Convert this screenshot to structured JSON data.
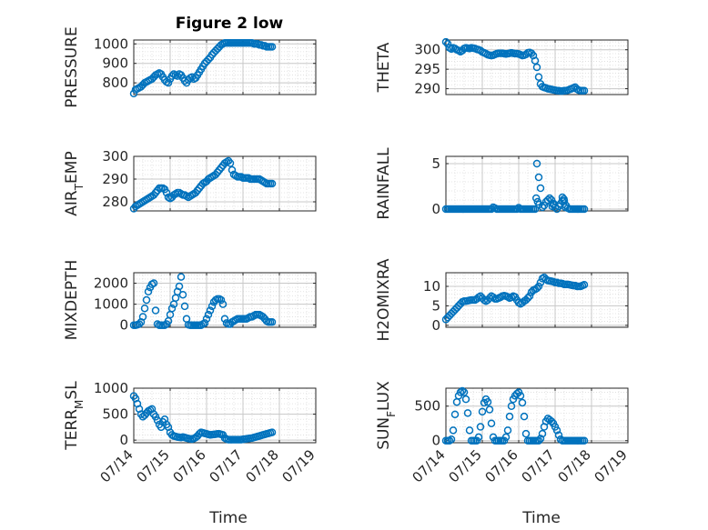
{
  "figure": {
    "title": "Figure 2 low",
    "marker_color": "#0072BD",
    "axis_color": "#262626",
    "grid_color": "#dcdcdc",
    "tick_labels_x": [
      "07/14",
      "07/15",
      "07/16",
      "07/17",
      "07/18",
      "07/19"
    ],
    "xlabel": "Time"
  },
  "chart_data": [
    {
      "type": "scatter",
      "title": "Figure 2 low",
      "xlabel": "",
      "ylabel": "PRESSURE",
      "xlim": [
        0,
        5
      ],
      "ylim": [
        740,
        1020
      ],
      "yticks": [
        800,
        900,
        1000
      ],
      "grid": true,
      "x": [
        0.0,
        0.05,
        0.1,
        0.15,
        0.2,
        0.25,
        0.3,
        0.35,
        0.4,
        0.45,
        0.5,
        0.55,
        0.6,
        0.65,
        0.7,
        0.75,
        0.8,
        0.85,
        0.9,
        0.95,
        1.0,
        1.05,
        1.1,
        1.15,
        1.2,
        1.25,
        1.3,
        1.35,
        1.4,
        1.45,
        1.5,
        1.55,
        1.6,
        1.65,
        1.7,
        1.75,
        1.8,
        1.85,
        1.9,
        1.95,
        2.0,
        2.05,
        2.1,
        2.15,
        2.2,
        2.25,
        2.3,
        2.35,
        2.4,
        2.45,
        2.5,
        2.55,
        2.6,
        2.65,
        2.7,
        2.75,
        2.8,
        2.85,
        2.9,
        2.95,
        3.0,
        3.05,
        3.1,
        3.15,
        3.2,
        3.25,
        3.3,
        3.35,
        3.4,
        3.45,
        3.5,
        3.55,
        3.6,
        3.65,
        3.7,
        3.75,
        3.8
      ],
      "y": [
        745,
        765,
        770,
        775,
        780,
        790,
        800,
        805,
        810,
        815,
        820,
        830,
        840,
        845,
        850,
        845,
        830,
        815,
        805,
        800,
        820,
        835,
        845,
        840,
        835,
        845,
        840,
        825,
        810,
        800,
        815,
        825,
        830,
        820,
        825,
        840,
        855,
        870,
        885,
        900,
        910,
        920,
        930,
        945,
        955,
        965,
        975,
        985,
        995,
        1000,
        1005,
        1005,
        1005,
        1005,
        1005,
        1005,
        1005,
        1005,
        1005,
        1005,
        1005,
        1005,
        1005,
        1005,
        1005,
        1005,
        1000,
        1000,
        1000,
        995,
        995,
        990,
        990,
        985,
        985,
        985,
        985
      ]
    },
    {
      "type": "scatter",
      "xlabel": "",
      "ylabel": "THETA",
      "xlim": [
        0,
        5
      ],
      "ylim": [
        288.5,
        302.5
      ],
      "yticks": [
        290,
        295,
        300
      ],
      "grid": true,
      "x": [
        0.0,
        0.05,
        0.1,
        0.15,
        0.2,
        0.25,
        0.3,
        0.35,
        0.4,
        0.45,
        0.5,
        0.55,
        0.6,
        0.65,
        0.7,
        0.75,
        0.8,
        0.85,
        0.9,
        0.95,
        1.0,
        1.05,
        1.1,
        1.15,
        1.2,
        1.25,
        1.3,
        1.35,
        1.4,
        1.45,
        1.5,
        1.55,
        1.6,
        1.65,
        1.7,
        1.75,
        1.8,
        1.85,
        1.9,
        1.95,
        2.0,
        2.05,
        2.1,
        2.15,
        2.2,
        2.25,
        2.3,
        2.35,
        2.4,
        2.45,
        2.5,
        2.55,
        2.6,
        2.65,
        2.7,
        2.75,
        2.8,
        2.85,
        2.9,
        2.95,
        3.0,
        3.05,
        3.1,
        3.15,
        3.2,
        3.25,
        3.3,
        3.35,
        3.4,
        3.45,
        3.5,
        3.55,
        3.6,
        3.65,
        3.7,
        3.75,
        3.8
      ],
      "y": [
        302,
        301.5,
        300.5,
        300.2,
        300.5,
        300.3,
        300,
        299.8,
        299.5,
        299.8,
        300.3,
        300.5,
        300.4,
        300.3,
        300.5,
        300.4,
        300.3,
        300.1,
        300,
        299.8,
        299.4,
        299.2,
        299,
        298.7,
        298.6,
        298.5,
        298.6,
        298.8,
        299,
        299.1,
        299.1,
        299.1,
        299,
        298.9,
        299,
        299.1,
        299.2,
        299.1,
        299,
        299,
        298.9,
        298.7,
        298.5,
        298.6,
        298.8,
        299.2,
        299.3,
        299.1,
        298.5,
        297.2,
        295.5,
        293,
        291.2,
        290.5,
        290.3,
        290.2,
        290,
        289.9,
        289.8,
        289.7,
        289.6,
        289.5,
        289.5,
        289.4,
        289.4,
        289.5,
        289.5,
        289.6,
        289.8,
        290,
        290.2,
        290.4,
        289.9,
        289.6,
        289.5,
        289.5,
        289.5
      ]
    },
    {
      "type": "scatter",
      "xlabel": "",
      "ylabel": "AIR_TEMP",
      "xlim": [
        0,
        5
      ],
      "ylim": [
        276,
        300
      ],
      "yticks": [
        280,
        290,
        300
      ],
      "grid": true,
      "x": [
        0.0,
        0.05,
        0.1,
        0.15,
        0.2,
        0.25,
        0.3,
        0.35,
        0.4,
        0.45,
        0.5,
        0.55,
        0.6,
        0.65,
        0.7,
        0.75,
        0.8,
        0.85,
        0.9,
        0.95,
        1.0,
        1.05,
        1.1,
        1.15,
        1.2,
        1.25,
        1.3,
        1.35,
        1.4,
        1.45,
        1.5,
        1.55,
        1.6,
        1.65,
        1.7,
        1.75,
        1.8,
        1.85,
        1.9,
        1.95,
        2.0,
        2.05,
        2.1,
        2.15,
        2.2,
        2.25,
        2.3,
        2.35,
        2.4,
        2.45,
        2.5,
        2.55,
        2.6,
        2.65,
        2.7,
        2.75,
        2.8,
        2.85,
        2.9,
        2.95,
        3.0,
        3.05,
        3.1,
        3.15,
        3.2,
        3.25,
        3.3,
        3.35,
        3.4,
        3.45,
        3.5,
        3.55,
        3.6,
        3.65,
        3.7,
        3.75,
        3.8
      ],
      "y": [
        277,
        278,
        278.5,
        279,
        279.5,
        280,
        280.5,
        281,
        281.5,
        282,
        282.5,
        283,
        284,
        285,
        286,
        286,
        286,
        285.5,
        284,
        282,
        281.5,
        282,
        283,
        283.5,
        284,
        284,
        283.5,
        283,
        283,
        282.5,
        282,
        282.5,
        283,
        283.5,
        284,
        285,
        286,
        287,
        288,
        288.5,
        289,
        290,
        290.5,
        291,
        291.5,
        292,
        293,
        294,
        295,
        296,
        297,
        297.5,
        298,
        297,
        294,
        292,
        291.5,
        291,
        291,
        291,
        290.5,
        290.5,
        290.5,
        290.5,
        290,
        290,
        290,
        290,
        290,
        290,
        289.5,
        289,
        288.5,
        288,
        288,
        288,
        288
      ]
    },
    {
      "type": "scatter",
      "xlabel": "",
      "ylabel": "RAINFALL",
      "xlim": [
        0,
        5
      ],
      "ylim": [
        -0.2,
        5.8
      ],
      "yticks": [
        0,
        5
      ],
      "grid": true,
      "x": [
        0.0,
        0.05,
        0.1,
        0.15,
        0.2,
        0.25,
        0.3,
        0.35,
        0.4,
        0.45,
        0.5,
        0.55,
        0.6,
        0.65,
        0.7,
        0.75,
        0.8,
        0.85,
        0.9,
        0.95,
        1.0,
        1.05,
        1.1,
        1.15,
        1.2,
        1.25,
        1.3,
        1.35,
        1.4,
        1.45,
        1.5,
        1.55,
        1.6,
        1.65,
        1.7,
        1.75,
        1.8,
        1.85,
        1.9,
        1.95,
        2.0,
        2.05,
        2.1,
        2.15,
        2.2,
        2.25,
        2.3,
        2.35,
        2.4,
        2.45,
        2.5,
        2.55,
        2.6,
        2.65,
        2.7,
        2.75,
        2.8,
        2.85,
        2.9,
        2.95,
        3.0,
        3.05,
        3.1,
        3.15,
        3.2,
        3.25,
        3.3,
        3.35,
        3.4,
        3.45,
        3.5,
        3.55,
        3.6,
        3.65,
        3.7,
        3.75,
        3.8,
        2.48,
        2.52,
        2.56,
        2.92,
        2.96,
        3.2,
        3.24,
        3.28
      ],
      "y": [
        0,
        0,
        0,
        0,
        0,
        0,
        0,
        0,
        0,
        0,
        0,
        0,
        0,
        0,
        0,
        0,
        0,
        0,
        0,
        0,
        0,
        0,
        0,
        0,
        0,
        0,
        0.2,
        0.1,
        0,
        0,
        0,
        0,
        0,
        0,
        0,
        0,
        0,
        0,
        0,
        0,
        0.15,
        0,
        0,
        0,
        0,
        0,
        0,
        0,
        0,
        0,
        5.0,
        3.5,
        2.3,
        0.2,
        0.4,
        0.8,
        1.0,
        1.2,
        1.0,
        0.5,
        0.2,
        0,
        0.3,
        0.6,
        1.3,
        0.9,
        0.4,
        0.1,
        0,
        0,
        0,
        0,
        0,
        0,
        0,
        0,
        0,
        1.2,
        0.8,
        0.5,
        0.3,
        0.6,
        0.9,
        1.1,
        0.2
      ]
    },
    {
      "type": "scatter",
      "xlabel": "",
      "ylabel": "MIXDEPTH",
      "xlim": [
        0,
        5
      ],
      "ylim": [
        -100,
        2500
      ],
      "yticks": [
        0,
        1000,
        2000
      ],
      "grid": true,
      "x": [
        0.0,
        0.05,
        0.1,
        0.15,
        0.2,
        0.25,
        0.3,
        0.35,
        0.4,
        0.45,
        0.5,
        0.55,
        0.6,
        0.65,
        0.7,
        0.75,
        0.8,
        0.85,
        0.9,
        0.95,
        1.0,
        1.05,
        1.1,
        1.15,
        1.2,
        1.25,
        1.3,
        1.35,
        1.4,
        1.45,
        1.5,
        1.55,
        1.6,
        1.65,
        1.7,
        1.75,
        1.8,
        1.85,
        1.9,
        1.95,
        2.0,
        2.05,
        2.1,
        2.15,
        2.2,
        2.25,
        2.3,
        2.35,
        2.4,
        2.45,
        2.5,
        2.55,
        2.6,
        2.65,
        2.7,
        2.75,
        2.8,
        2.85,
        2.9,
        2.95,
        3.0,
        3.05,
        3.1,
        3.15,
        3.2,
        3.25,
        3.3,
        3.35,
        3.4,
        3.45,
        3.5,
        3.55,
        3.6,
        3.65,
        3.7,
        3.75,
        3.8
      ],
      "y": [
        0,
        0,
        20,
        50,
        150,
        400,
        800,
        1200,
        1600,
        1800,
        1950,
        2000,
        700,
        50,
        0,
        0,
        0,
        0,
        50,
        200,
        500,
        800,
        1000,
        1300,
        1600,
        1850,
        2300,
        1450,
        900,
        300,
        20,
        0,
        0,
        0,
        0,
        0,
        0,
        0,
        50,
        100,
        300,
        500,
        700,
        900,
        1100,
        1200,
        1250,
        1250,
        1200,
        1000,
        300,
        100,
        50,
        50,
        150,
        200,
        250,
        300,
        300,
        300,
        300,
        300,
        300,
        350,
        400,
        400,
        450,
        500,
        500,
        500,
        450,
        400,
        300,
        200,
        150,
        150,
        150
      ]
    },
    {
      "type": "scatter",
      "xlabel": "",
      "ylabel": "H2OMIXRA",
      "xlim": [
        0,
        5
      ],
      "ylim": [
        -0.5,
        13.5
      ],
      "yticks": [
        0,
        5,
        10
      ],
      "grid": true,
      "x": [
        0.0,
        0.05,
        0.1,
        0.15,
        0.2,
        0.25,
        0.3,
        0.35,
        0.4,
        0.45,
        0.5,
        0.55,
        0.6,
        0.65,
        0.7,
        0.75,
        0.8,
        0.85,
        0.9,
        0.95,
        1.0,
        1.05,
        1.1,
        1.15,
        1.2,
        1.25,
        1.3,
        1.35,
        1.4,
        1.45,
        1.5,
        1.55,
        1.6,
        1.65,
        1.7,
        1.75,
        1.8,
        1.85,
        1.9,
        1.95,
        2.0,
        2.05,
        2.1,
        2.15,
        2.2,
        2.25,
        2.3,
        2.35,
        2.4,
        2.45,
        2.5,
        2.55,
        2.6,
        2.65,
        2.7,
        2.75,
        2.8,
        2.85,
        2.9,
        2.95,
        3.0,
        3.05,
        3.1,
        3.15,
        3.2,
        3.25,
        3.3,
        3.35,
        3.4,
        3.45,
        3.5,
        3.55,
        3.6,
        3.65,
        3.7,
        3.75,
        3.8
      ],
      "y": [
        1.5,
        2,
        2.5,
        3,
        3.5,
        4,
        4.5,
        5,
        5.5,
        6,
        6.2,
        6.2,
        6.3,
        6.4,
        6.5,
        6.5,
        6.5,
        6.8,
        7.2,
        7.5,
        7,
        6.5,
        6.2,
        6.5,
        7,
        7.5,
        7.2,
        6.8,
        6.8,
        7,
        7.2,
        7.5,
        7.6,
        7.5,
        7.3,
        7,
        7.2,
        7.5,
        7.3,
        6.5,
        5.8,
        5.5,
        5.8,
        6.2,
        6.5,
        7,
        7.5,
        8.5,
        9,
        9.2,
        9.5,
        10,
        11,
        12,
        12.3,
        11.8,
        11.5,
        11.4,
        11.3,
        11.2,
        11,
        11,
        10.8,
        10.8,
        10.7,
        10.5,
        10.5,
        10.5,
        10.4,
        10.3,
        10.2,
        10.2,
        10,
        10,
        10,
        10.2,
        10.4
      ]
    },
    {
      "type": "scatter",
      "xlabel": "",
      "ylabel": "TERR_MSL",
      "xlim": [
        0,
        5
      ],
      "ylim": [
        -50,
        1000
      ],
      "yticks": [
        0,
        500,
        1000
      ],
      "grid": true,
      "x": [
        0.0,
        0.05,
        0.1,
        0.15,
        0.2,
        0.25,
        0.3,
        0.35,
        0.4,
        0.45,
        0.5,
        0.55,
        0.6,
        0.65,
        0.7,
        0.75,
        0.8,
        0.85,
        0.9,
        0.95,
        1.0,
        1.05,
        1.1,
        1.15,
        1.2,
        1.25,
        1.3,
        1.35,
        1.4,
        1.45,
        1.5,
        1.55,
        1.6,
        1.65,
        1.7,
        1.75,
        1.8,
        1.85,
        1.9,
        1.95,
        2.0,
        2.05,
        2.1,
        2.15,
        2.2,
        2.25,
        2.3,
        2.35,
        2.4,
        2.45,
        2.5,
        2.55,
        2.6,
        2.65,
        2.7,
        2.75,
        2.8,
        2.85,
        2.9,
        2.95,
        3.0,
        3.05,
        3.1,
        3.15,
        3.2,
        3.25,
        3.3,
        3.35,
        3.4,
        3.45,
        3.5,
        3.55,
        3.6,
        3.65,
        3.7,
        3.75,
        3.8
      ],
      "y": [
        850,
        800,
        700,
        600,
        500,
        450,
        480,
        520,
        560,
        580,
        600,
        500,
        450,
        380,
        300,
        250,
        350,
        400,
        300,
        250,
        150,
        100,
        80,
        70,
        60,
        55,
        50,
        60,
        50,
        40,
        30,
        25,
        20,
        30,
        50,
        80,
        120,
        150,
        140,
        130,
        120,
        110,
        100,
        105,
        110,
        115,
        120,
        120,
        110,
        100,
        40,
        20,
        10,
        10,
        10,
        10,
        10,
        10,
        10,
        10,
        15,
        20,
        25,
        30,
        35,
        40,
        50,
        60,
        70,
        80,
        90,
        100,
        110,
        120,
        130,
        140,
        150
      ]
    },
    {
      "type": "scatter",
      "xlabel": "",
      "ylabel": "SUN_FLUX",
      "xlim": [
        0,
        5
      ],
      "ylim": [
        -30,
        760
      ],
      "yticks": [
        0,
        500
      ],
      "grid": true,
      "x": [
        0.0,
        0.05,
        0.1,
        0.15,
        0.2,
        0.25,
        0.3,
        0.35,
        0.4,
        0.45,
        0.5,
        0.55,
        0.6,
        0.65,
        0.7,
        0.75,
        0.8,
        0.85,
        0.9,
        0.95,
        1.0,
        1.05,
        1.1,
        1.15,
        1.2,
        1.25,
        1.3,
        1.35,
        1.4,
        1.45,
        1.5,
        1.55,
        1.6,
        1.65,
        1.7,
        1.75,
        1.8,
        1.85,
        1.9,
        1.95,
        2.0,
        2.05,
        2.1,
        2.15,
        2.2,
        2.25,
        2.3,
        2.35,
        2.4,
        2.45,
        2.5,
        2.55,
        2.6,
        2.65,
        2.7,
        2.75,
        2.8,
        2.85,
        2.9,
        2.95,
        3.0,
        3.05,
        3.1,
        3.15,
        3.2,
        3.25,
        3.3,
        3.35,
        3.4,
        3.45,
        3.5,
        3.55,
        3.6,
        3.65,
        3.7,
        3.75,
        3.8
      ],
      "y": [
        0,
        0,
        0,
        20,
        150,
        380,
        560,
        650,
        700,
        720,
        700,
        600,
        400,
        150,
        0,
        0,
        0,
        0,
        50,
        200,
        420,
        550,
        600,
        560,
        450,
        250,
        50,
        0,
        0,
        0,
        0,
        0,
        0,
        50,
        150,
        350,
        500,
        600,
        650,
        680,
        700,
        650,
        550,
        350,
        100,
        0,
        0,
        0,
        0,
        0,
        0,
        0,
        30,
        100,
        200,
        280,
        320,
        300,
        280,
        250,
        200,
        150,
        80,
        20,
        0,
        0,
        0,
        0,
        0,
        0,
        0,
        0,
        0,
        0,
        0,
        0,
        0
      ]
    }
  ]
}
